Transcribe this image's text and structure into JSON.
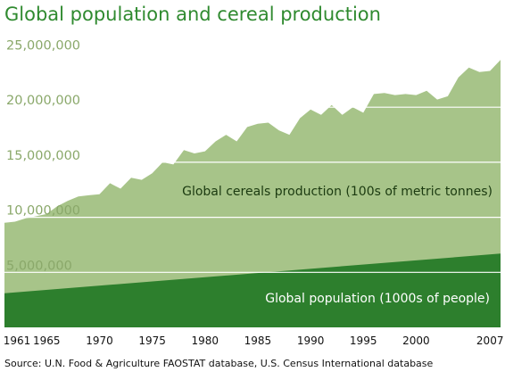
{
  "title": "Global population and cereal production",
  "source": "Source: U.N. Food & Agriculture FAOSTAT database, U.S. Census International database",
  "chart_data": {
    "type": "area",
    "title": "Global population and cereal production",
    "xlim": [
      1961,
      2008
    ],
    "ylim": [
      0,
      26500000
    ],
    "y_ticks": [
      "5,000,000",
      "10,000,000",
      "15,000,000",
      "20,000,000",
      "25,000,000"
    ],
    "y_tick_values": [
      5000000,
      10000000,
      15000000,
      20000000,
      25000000
    ],
    "x_ticks": [
      "1961",
      "1965",
      "1970",
      "1975",
      "1980",
      "1985",
      "1990",
      "1995",
      "2000",
      "2007"
    ],
    "x_tick_values": [
      1961,
      1965,
      1970,
      1975,
      1980,
      1985,
      1990,
      1995,
      2000,
      2007
    ],
    "grid": true,
    "colors": {
      "cereals": "#a7c489",
      "population": "#2d7f2d",
      "grid": "#ffffff"
    },
    "series": [
      {
        "name": "Global cereals production (100s of metric tonnes)",
        "x": [
          1961,
          1962,
          1963,
          1964,
          1965,
          1966,
          1967,
          1968,
          1969,
          1970,
          1971,
          1972,
          1973,
          1974,
          1975,
          1976,
          1977,
          1978,
          1979,
          1980,
          1981,
          1982,
          1983,
          1984,
          1985,
          1986,
          1987,
          1988,
          1989,
          1990,
          1991,
          1992,
          1993,
          1994,
          1995,
          1996,
          1997,
          1998,
          1999,
          2000,
          2001,
          2002,
          2003,
          2004,
          2005,
          2006,
          2007,
          2008
        ],
        "values": [
          9500000,
          9600000,
          9900000,
          10100000,
          10300000,
          11000000,
          11500000,
          11900000,
          12000000,
          12100000,
          13100000,
          12600000,
          13600000,
          13400000,
          14000000,
          15000000,
          14800000,
          16100000,
          15800000,
          16000000,
          16900000,
          17500000,
          16900000,
          18200000,
          18500000,
          18600000,
          17900000,
          17500000,
          19000000,
          19800000,
          19300000,
          20200000,
          19300000,
          20000000,
          19500000,
          21200000,
          21300000,
          21100000,
          21200000,
          21100000,
          21500000,
          20700000,
          21000000,
          22700000,
          23600000,
          23200000,
          23300000,
          24300000
        ]
      },
      {
        "name": "Global population (1000s of people)",
        "x": [
          1961,
          2008
        ],
        "values": [
          3100000,
          6700000
        ]
      }
    ]
  }
}
